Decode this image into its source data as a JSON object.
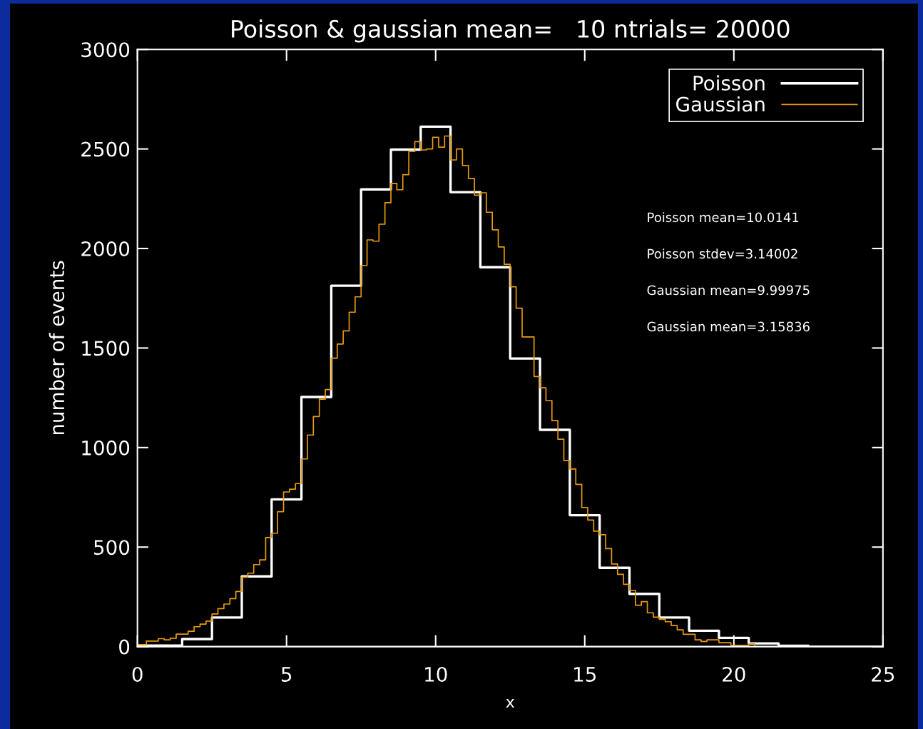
{
  "chart_data": {
    "type": "step",
    "title": "Poisson & gaussian mean=   10 ntrials= 20000",
    "xlabel": "x",
    "ylabel": "number of events",
    "annotations": [
      "Poisson mean=10.0141",
      "Poisson stdev=3.14002",
      "Gaussian mean=9.99975",
      "Gaussian mean=3.15836"
    ],
    "series": [
      {
        "name": "Poisson",
        "color": "#ffffff",
        "x": [
          0,
          1,
          2,
          3,
          4,
          5,
          6,
          7,
          8,
          9,
          10,
          11,
          12,
          13,
          14,
          15,
          16,
          17,
          18,
          19,
          20,
          21,
          22,
          23,
          24,
          25
        ],
        "values": [
          5,
          5,
          38,
          146,
          353,
          740,
          1254,
          1813,
          2297,
          2497,
          2612,
          2283,
          1906,
          1447,
          1089,
          660,
          396,
          265,
          146,
          80,
          44,
          16,
          4,
          0,
          0,
          0
        ]
      },
      {
        "name": "Gaussian",
        "color": "#e89a0c",
        "x": [
          0,
          0.2,
          0.4,
          0.6,
          0.8,
          1,
          1.2,
          1.4,
          1.6,
          1.8,
          2,
          2.2,
          2.4,
          2.6,
          2.8,
          3,
          3.2,
          3.4,
          3.6,
          3.8,
          4,
          4.2,
          4.4,
          4.6,
          4.8,
          5,
          5.2,
          5.4,
          5.6,
          5.8,
          6,
          6.2,
          6.4,
          6.6,
          6.8,
          7,
          7.2,
          7.4,
          7.6,
          7.8,
          8,
          8.2,
          8.4,
          8.6,
          8.8,
          9,
          9.2,
          9.4,
          9.6,
          9.8,
          10,
          10.2,
          10.4,
          10.6,
          10.8,
          11,
          11.2,
          11.4,
          11.6,
          11.8,
          12,
          12.2,
          12.4,
          12.6,
          12.8,
          13,
          13.2,
          13.4,
          13.6,
          13.8,
          14,
          14.2,
          14.4,
          14.6,
          14.8,
          15,
          15.2,
          15.4,
          15.6,
          15.8,
          16,
          16.2,
          16.4,
          16.6,
          16.8,
          17,
          17.2,
          17.4,
          17.6,
          17.8,
          18,
          18.2,
          18.4,
          18.6,
          18.8,
          19,
          19.2,
          19.4,
          19.6,
          19.8,
          20,
          20.2,
          20.4,
          20.6,
          20.8,
          25
        ],
        "values": [
          10,
          10,
          28,
          28,
          40,
          34,
          42,
          63,
          63,
          77,
          100,
          113,
          128,
          164,
          191,
          214,
          241,
          277,
          349,
          369,
          412,
          436,
          548,
          570,
          678,
          777,
          791,
          819,
          943,
          1063,
          1156,
          1243,
          1291,
          1449,
          1520,
          1586,
          1680,
          1757,
          1915,
          2043,
          2037,
          2122,
          2230,
          2327,
          2295,
          2371,
          2487,
          2537,
          2495,
          2500,
          2558,
          2509,
          2565,
          2445,
          2500,
          2417,
          2352,
          2268,
          2280,
          2182,
          2094,
          2008,
          1921,
          1808,
          1700,
          1556,
          1556,
          1357,
          1300,
          1236,
          1135,
          1042,
          935,
          892,
          815,
          699,
          636,
          580,
          562,
          492,
          415,
          363,
          313,
          283,
          208,
          226,
          170,
          148,
          137,
          125,
          106,
          84,
          62,
          62,
          34,
          26,
          34,
          34,
          20,
          20,
          6,
          6,
          6,
          14,
          0,
          0
        ]
      }
    ],
    "xlim": [
      0,
      25
    ],
    "ylim": [
      0,
      3000
    ],
    "xticks": [
      0,
      5,
      10,
      15,
      20,
      25
    ],
    "yticks": [
      0,
      500,
      1000,
      1500,
      2000,
      2500,
      3000
    ],
    "legend": "top right"
  }
}
